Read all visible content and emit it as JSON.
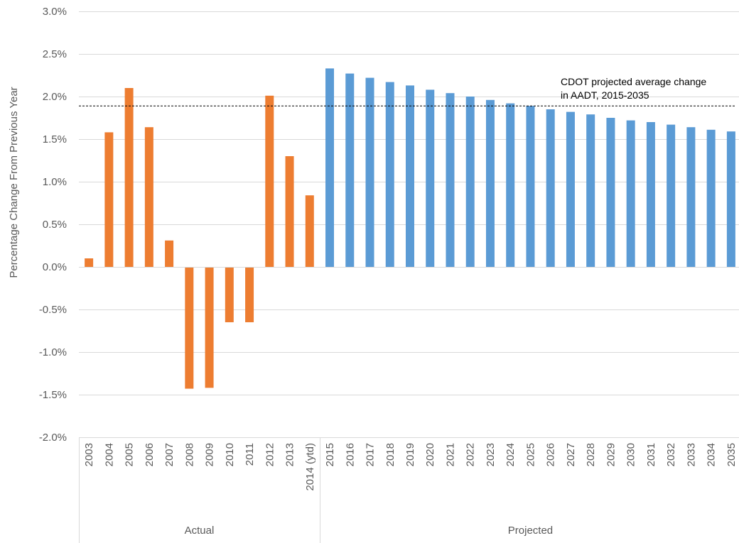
{
  "chart_data": {
    "type": "bar",
    "title": "",
    "xlabel": "",
    "ylabel": "Percentage Change From Previous Year",
    "ylim": [
      -2.0,
      3.0
    ],
    "yticks": [
      "3.0%",
      "2.5%",
      "2.0%",
      "1.5%",
      "1.0%",
      "0.5%",
      "0.0%",
      "-0.5%",
      "-1.0%",
      "-1.5%",
      "-2.0%"
    ],
    "ytick_values": [
      3.0,
      2.5,
      2.0,
      1.5,
      1.0,
      0.5,
      0.0,
      -0.5,
      -1.0,
      -1.5,
      -2.0
    ],
    "grid": true,
    "categories": [
      "2003",
      "2004",
      "2005",
      "2006",
      "2007",
      "2008",
      "2009",
      "2010",
      "2011",
      "2012",
      "2013",
      "2014 (ytd)",
      "2015",
      "2016",
      "2017",
      "2018",
      "2019",
      "2020",
      "2021",
      "2022",
      "2023",
      "2024",
      "2025",
      "2026",
      "2027",
      "2028",
      "2029",
      "2030",
      "2031",
      "2032",
      "2033",
      "2034",
      "2035"
    ],
    "values": [
      0.1,
      1.58,
      2.1,
      1.64,
      0.31,
      -1.43,
      -1.42,
      -0.65,
      -0.65,
      2.01,
      1.3,
      0.84,
      2.33,
      2.27,
      2.22,
      2.17,
      2.13,
      2.08,
      2.04,
      2.0,
      1.96,
      1.92,
      1.89,
      1.85,
      1.82,
      1.79,
      1.75,
      1.72,
      1.7,
      1.67,
      1.64,
      1.61,
      1.59
    ],
    "groups": [
      {
        "label": "Actual",
        "start": 0,
        "end": 11,
        "color": "#ED7D31"
      },
      {
        "label": "Projected",
        "start": 12,
        "end": 32,
        "color": "#5B9BD5"
      }
    ],
    "reference_line": {
      "value": 1.89,
      "label_lines": [
        "CDOT projected average change",
        "in AADT, 2015-2035"
      ],
      "style": "dashed",
      "color": "#000000"
    }
  }
}
